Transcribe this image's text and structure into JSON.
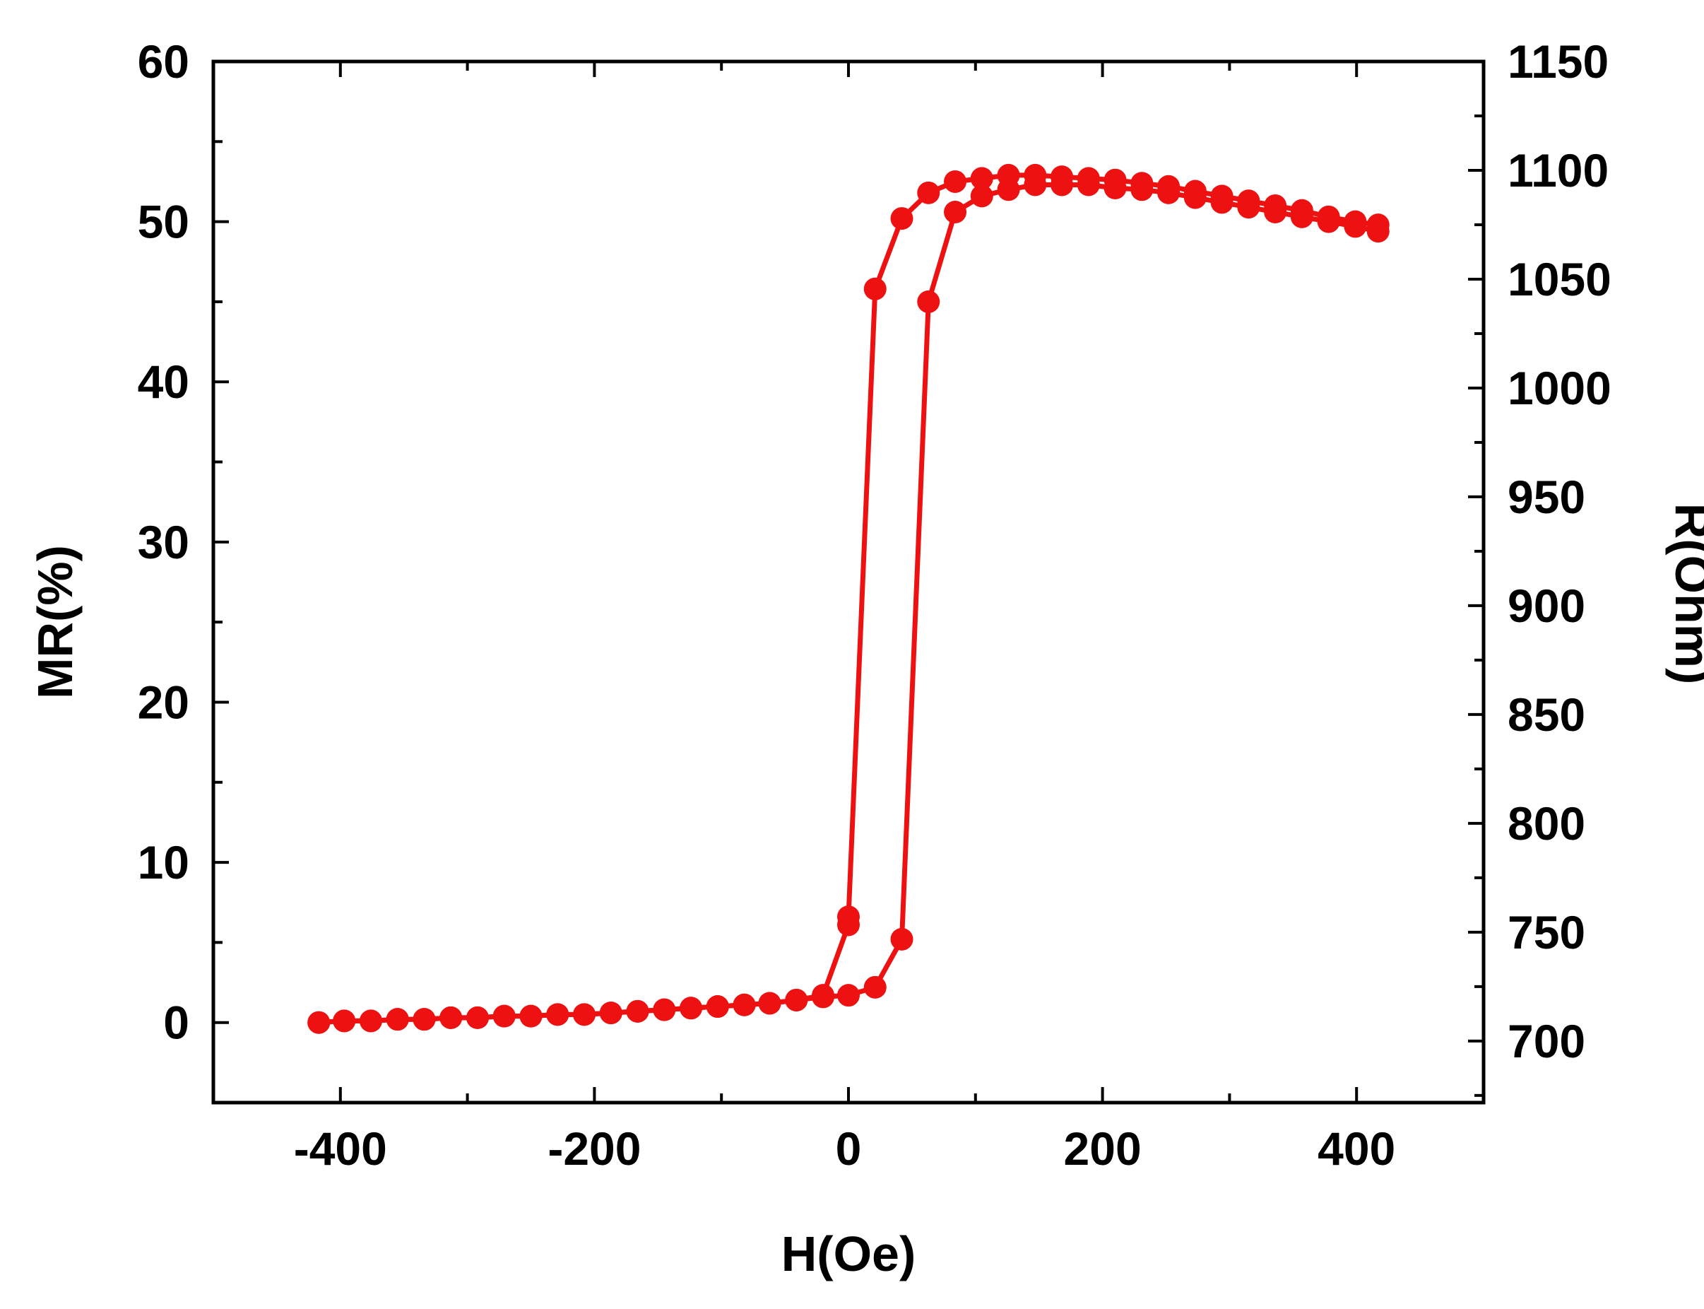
{
  "chart_data": {
    "type": "line",
    "xlabel": "H(Oe)",
    "ylabel": "MR(%)",
    "y2label": "R(Ohm)",
    "xlim": [
      -500,
      500
    ],
    "ylim": [
      -5,
      60
    ],
    "y2lim": [
      671.7,
      1150
    ],
    "x_ticks": [
      -400,
      -200,
      0,
      200,
      400
    ],
    "x_tick_labels": [
      "-400",
      "-200",
      "0",
      "200",
      "400"
    ],
    "y_ticks": [
      0,
      10,
      20,
      30,
      40,
      50,
      60
    ],
    "y_tick_labels": [
      "0",
      "10",
      "20",
      "30",
      "40",
      "50",
      "60"
    ],
    "y2_ticks": [
      700,
      750,
      800,
      850,
      900,
      950,
      1000,
      1050,
      1100,
      1150
    ],
    "y2_tick_labels": [
      "700",
      "750",
      "800",
      "850",
      "900",
      "950",
      "1000",
      "1050",
      "1100",
      "1150"
    ],
    "grid": false,
    "marker": "circle",
    "series_color": "#ee1111",
    "series": [
      {
        "x": [
          -417,
          -397,
          -376,
          -355,
          -334,
          -313,
          -292,
          -271,
          -250,
          -229,
          -208,
          -187,
          -166,
          -145,
          -124,
          -103,
          -82,
          -62,
          -41,
          -20,
          0,
          21,
          42,
          63,
          84,
          105,
          126,
          147,
          168,
          189,
          210,
          231,
          252,
          273,
          294,
          315,
          336,
          357,
          378,
          399,
          417
        ],
        "y": [
          0.0,
          0.1,
          0.1,
          0.2,
          0.2,
          0.3,
          0.3,
          0.4,
          0.4,
          0.5,
          0.5,
          0.6,
          0.7,
          0.8,
          0.9,
          1.0,
          1.1,
          1.2,
          1.4,
          1.6,
          1.7,
          2.2,
          5.2,
          45.0,
          50.6,
          51.6,
          52.0,
          52.3,
          52.3,
          52.3,
          52.1,
          52.0,
          51.8,
          51.5,
          51.2,
          50.9,
          50.6,
          50.3,
          50.0,
          49.7,
          49.4
        ]
      },
      {
        "x": [
          417,
          399,
          378,
          357,
          336,
          315,
          294,
          273,
          252,
          231,
          210,
          189,
          168,
          147,
          126,
          105,
          84,
          63,
          42,
          21,
          0,
          0,
          -20,
          -41,
          -62,
          -82,
          -103,
          -124,
          -145,
          -166,
          -187,
          -208,
          -229,
          -250,
          -271,
          -292,
          -313,
          -334,
          -355,
          -376,
          -397,
          -417
        ],
        "y": [
          49.8,
          50.0,
          50.3,
          50.7,
          51.0,
          51.3,
          51.6,
          51.9,
          52.2,
          52.4,
          52.6,
          52.7,
          52.8,
          52.9,
          52.9,
          52.7,
          52.5,
          51.8,
          50.2,
          45.8,
          6.6,
          6.1,
          1.7,
          1.4,
          1.2,
          1.1,
          1.0,
          0.9,
          0.8,
          0.7,
          0.6,
          0.5,
          0.5,
          0.4,
          0.4,
          0.3,
          0.3,
          0.2,
          0.2,
          0.1,
          0.1,
          0.0
        ]
      }
    ]
  }
}
